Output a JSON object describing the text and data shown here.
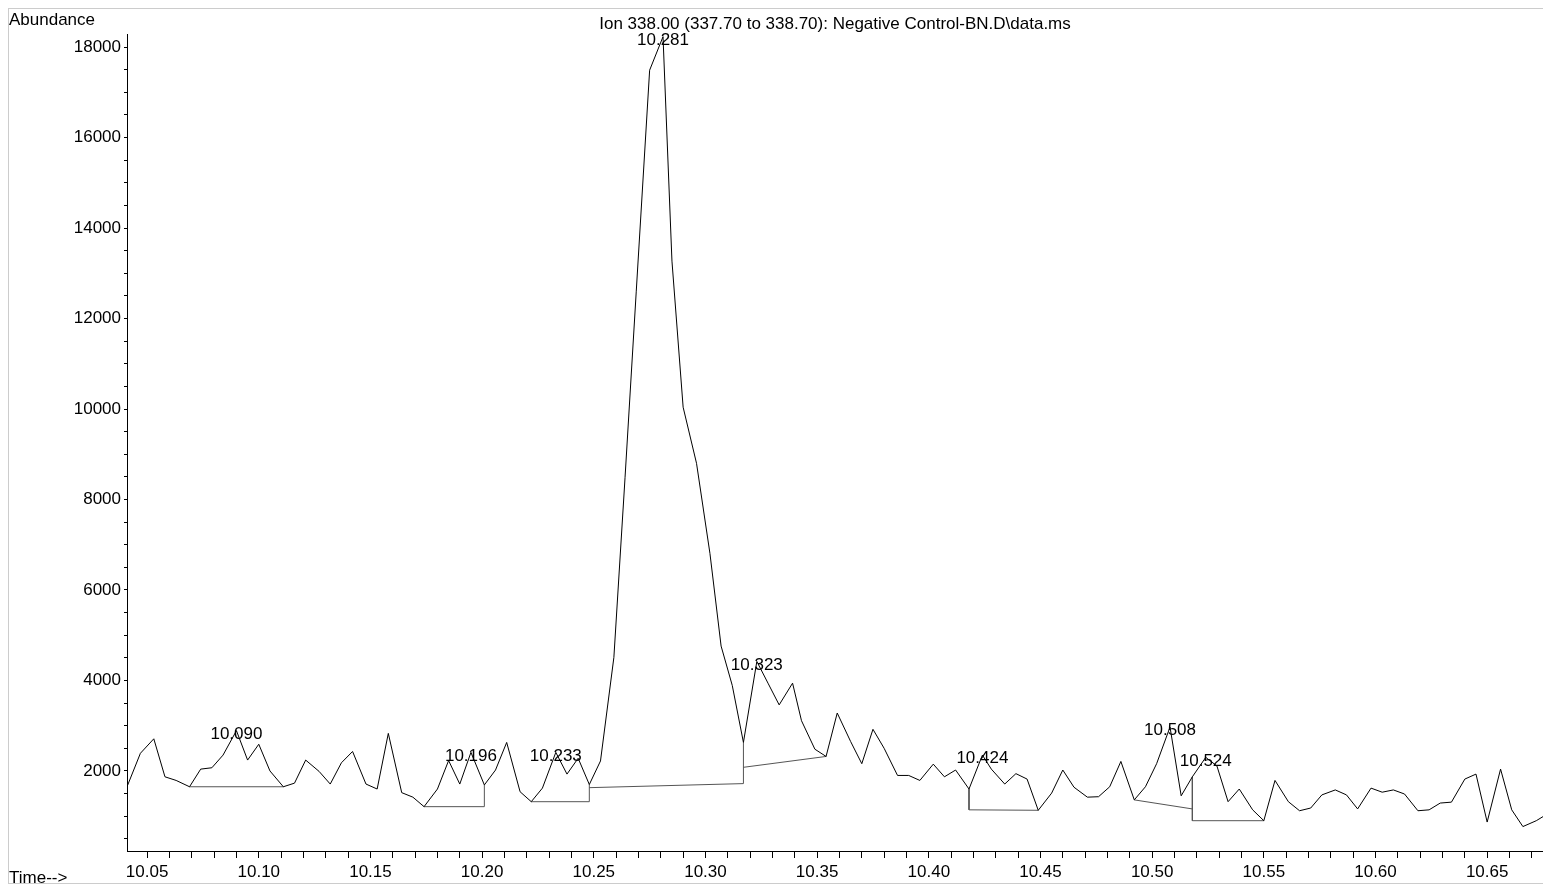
{
  "chart_data": {
    "type": "line",
    "title": "Ion 338.00 (337.70 to 338.70): Negative Control-BN.D\\data.ms",
    "xlabel": "Time-->",
    "ylabel": "Abundance",
    "xlim": [
      10.041,
      10.675
    ],
    "ylim": [
      230,
      18290
    ],
    "xticks": [
      {
        "value": 10.05,
        "label": "10.05"
      },
      {
        "value": 10.06,
        "label": null
      },
      {
        "value": 10.07,
        "label": null
      },
      {
        "value": 10.08,
        "label": null
      },
      {
        "value": 10.09,
        "label": null
      },
      {
        "value": 10.1,
        "label": "10.10"
      },
      {
        "value": 10.11,
        "label": null
      },
      {
        "value": 10.12,
        "label": null
      },
      {
        "value": 10.13,
        "label": null
      },
      {
        "value": 10.14,
        "label": null
      },
      {
        "value": 10.15,
        "label": "10.15"
      },
      {
        "value": 10.16,
        "label": null
      },
      {
        "value": 10.17,
        "label": null
      },
      {
        "value": 10.18,
        "label": null
      },
      {
        "value": 10.19,
        "label": null
      },
      {
        "value": 10.2,
        "label": "10.20"
      },
      {
        "value": 10.21,
        "label": null
      },
      {
        "value": 10.22,
        "label": null
      },
      {
        "value": 10.23,
        "label": null
      },
      {
        "value": 10.24,
        "label": null
      },
      {
        "value": 10.25,
        "label": "10.25"
      },
      {
        "value": 10.26,
        "label": null
      },
      {
        "value": 10.27,
        "label": null
      },
      {
        "value": 10.28,
        "label": null
      },
      {
        "value": 10.29,
        "label": null
      },
      {
        "value": 10.3,
        "label": "10.30"
      },
      {
        "value": 10.31,
        "label": null
      },
      {
        "value": 10.32,
        "label": null
      },
      {
        "value": 10.33,
        "label": null
      },
      {
        "value": 10.34,
        "label": null
      },
      {
        "value": 10.35,
        "label": "10.35"
      },
      {
        "value": 10.36,
        "label": null
      },
      {
        "value": 10.37,
        "label": null
      },
      {
        "value": 10.38,
        "label": null
      },
      {
        "value": 10.39,
        "label": null
      },
      {
        "value": 10.4,
        "label": "10.40"
      },
      {
        "value": 10.41,
        "label": null
      },
      {
        "value": 10.42,
        "label": null
      },
      {
        "value": 10.43,
        "label": null
      },
      {
        "value": 10.44,
        "label": null
      },
      {
        "value": 10.45,
        "label": "10.45"
      },
      {
        "value": 10.46,
        "label": null
      },
      {
        "value": 10.47,
        "label": null
      },
      {
        "value": 10.48,
        "label": null
      },
      {
        "value": 10.49,
        "label": null
      },
      {
        "value": 10.5,
        "label": "10.50"
      },
      {
        "value": 10.51,
        "label": null
      },
      {
        "value": 10.52,
        "label": null
      },
      {
        "value": 10.53,
        "label": null
      },
      {
        "value": 10.54,
        "label": null
      },
      {
        "value": 10.55,
        "label": "10.55"
      },
      {
        "value": 10.56,
        "label": null
      },
      {
        "value": 10.57,
        "label": null
      },
      {
        "value": 10.58,
        "label": null
      },
      {
        "value": 10.59,
        "label": null
      },
      {
        "value": 10.6,
        "label": "10.60"
      },
      {
        "value": 10.61,
        "label": null
      },
      {
        "value": 10.62,
        "label": null
      },
      {
        "value": 10.63,
        "label": null
      },
      {
        "value": 10.64,
        "label": null
      },
      {
        "value": 10.65,
        "label": "10.65"
      },
      {
        "value": 10.66,
        "label": null
      },
      {
        "value": 10.67,
        "label": null
      }
    ],
    "yticks": [
      {
        "value": 500,
        "label": null
      },
      {
        "value": 1000,
        "label": null
      },
      {
        "value": 1500,
        "label": null
      },
      2000,
      {
        "value": 2500,
        "label": null
      },
      {
        "value": 3000,
        "label": null
      },
      {
        "value": 3500,
        "label": null
      },
      4000,
      {
        "value": 4500,
        "label": null
      },
      {
        "value": 5000,
        "label": null
      },
      {
        "value": 5500,
        "label": null
      },
      6000,
      {
        "value": 6500,
        "label": null
      },
      {
        "value": 7000,
        "label": null
      },
      {
        "value": 7500,
        "label": null
      },
      8000,
      {
        "value": 8500,
        "label": null
      },
      {
        "value": 9000,
        "label": null
      },
      {
        "value": 9500,
        "label": null
      },
      10000,
      {
        "value": 10500,
        "label": null
      },
      {
        "value": 11000,
        "label": null
      },
      {
        "value": 11500,
        "label": null
      },
      12000,
      {
        "value": 12500,
        "label": null
      },
      {
        "value": 13000,
        "label": null
      },
      {
        "value": 13500,
        "label": null
      },
      14000,
      {
        "value": 14500,
        "label": null
      },
      {
        "value": 15000,
        "label": null
      },
      {
        "value": 15500,
        "label": null
      },
      16000,
      {
        "value": 16500,
        "label": null
      },
      {
        "value": 17000,
        "label": null
      },
      {
        "value": 17500,
        "label": null
      },
      18000
    ],
    "grid": false,
    "legend": false,
    "marker": "none",
    "line_style": "solid",
    "series": [
      {
        "color": "#000000",
        "x": [
          10.041,
          10.047,
          10.053,
          10.058,
          10.063,
          10.069,
          10.074,
          10.079,
          10.084,
          10.09,
          10.095,
          10.1,
          10.105,
          10.111,
          10.116,
          10.121,
          10.127,
          10.132,
          10.137,
          10.142,
          10.148,
          10.153,
          10.158,
          10.164,
          10.169,
          10.174,
          10.18,
          10.185,
          10.19,
          10.195,
          10.201,
          10.206,
          10.211,
          10.217,
          10.222,
          10.227,
          10.233,
          10.238,
          10.243,
          10.248,
          10.253,
          10.259,
          10.264,
          10.269,
          10.275,
          10.281,
          10.285,
          10.29,
          10.296,
          10.302,
          10.307,
          10.312,
          10.317,
          10.323,
          10.328,
          10.333,
          10.339,
          10.343,
          10.349,
          10.354,
          10.359,
          10.365,
          10.37,
          10.375,
          10.38,
          10.386,
          10.391,
          10.396,
          10.402,
          10.407,
          10.412,
          10.418,
          10.424,
          10.428,
          10.434,
          10.439,
          10.444,
          10.449,
          10.455,
          10.46,
          10.465,
          10.471,
          10.476,
          10.481,
          10.486,
          10.492,
          10.497,
          10.502,
          10.508,
          10.513,
          10.518,
          10.524,
          10.529,
          10.534,
          10.539,
          10.545,
          10.55,
          10.555,
          10.561,
          10.566,
          10.571,
          10.576,
          10.582,
          10.587,
          10.592,
          10.598,
          10.603,
          10.608,
          10.613,
          10.619,
          10.624,
          10.629,
          10.634,
          10.64,
          10.645,
          10.65,
          10.656,
          10.661,
          10.666,
          10.672,
          10.675
        ],
        "values": [
          1650,
          2390,
          2710,
          1870,
          1790,
          1650,
          2040,
          2070,
          2350,
          2890,
          2240,
          2590,
          2000,
          1650,
          1730,
          2240,
          1990,
          1710,
          2180,
          2430,
          1710,
          1600,
          2830,
          1520,
          1420,
          1210,
          1600,
          2230,
          1710,
          2410,
          1690,
          2020,
          2630,
          1540,
          1320,
          1620,
          2410,
          1930,
          2280,
          1700,
          2220,
          4510,
          8490,
          12590,
          17490,
          18230,
          13270,
          10040,
          8800,
          6810,
          4760,
          3890,
          2630,
          4420,
          3940,
          3460,
          3940,
          3110,
          2480,
          2320,
          3280,
          2650,
          2160,
          2920,
          2500,
          1900,
          1900,
          1790,
          2150,
          1870,
          2020,
          1600,
          2350,
          2040,
          1710,
          1940,
          1820,
          1130,
          1510,
          2020,
          1640,
          1420,
          1430,
          1650,
          2210,
          1360,
          1650,
          2160,
          2970,
          1450,
          1870,
          2300,
          2110,
          1320,
          1600,
          1140,
          900,
          1790,
          1320,
          1120,
          1180,
          1470,
          1580,
          1470,
          1160,
          1620,
          1530,
          1580,
          1490,
          1120,
          1140,
          1290,
          1310,
          1820,
          1930,
          870,
          2040,
          1140,
          770,
          900,
          990
        ]
      },
      {
        "color": "#555555",
        "x": [
          10.069,
          10.111
        ],
        "values": [
          1650,
          1650
        ]
      },
      {
        "color": "#555555",
        "x": [
          10.174,
          10.201,
          10.201
        ],
        "values": [
          1210,
          1210,
          1690
        ]
      },
      {
        "color": "#555555",
        "x": [
          10.222,
          10.248,
          10.248
        ],
        "values": [
          1320,
          1320,
          1700
        ]
      },
      {
        "color": "#555555",
        "x": [
          10.248,
          10.317,
          10.317
        ],
        "values": [
          1630,
          1720,
          2630
        ]
      },
      {
        "color": "#555555",
        "x": [
          10.317,
          10.354
        ],
        "values": [
          2080,
          2320
        ]
      },
      {
        "color": "#555555",
        "x": [
          10.418,
          10.418,
          10.449
        ],
        "values": [
          1600,
          1140,
          1130
        ]
      },
      {
        "color": "#555555",
        "x": [
          10.492,
          10.518
        ],
        "values": [
          1360,
          1160
        ]
      },
      {
        "color": "#555555",
        "x": [
          10.518,
          10.518,
          10.55
        ],
        "values": [
          1870,
          900,
          900
        ]
      }
    ],
    "annotations": [
      {
        "text": "10.090",
        "x": 10.09,
        "y": 2890
      },
      {
        "text": "10.196",
        "x": 10.195,
        "y": 2410
      },
      {
        "text": "10.233",
        "x": 10.233,
        "y": 2410
      },
      {
        "text": "10.281",
        "x": 10.281,
        "y": 18230
      },
      {
        "text": "10.323",
        "x": 10.323,
        "y": 4420
      },
      {
        "text": "10.424",
        "x": 10.424,
        "y": 2350
      },
      {
        "text": "10.508",
        "x": 10.508,
        "y": 2970
      },
      {
        "text": "10.524",
        "x": 10.524,
        "y": 2300
      }
    ]
  }
}
